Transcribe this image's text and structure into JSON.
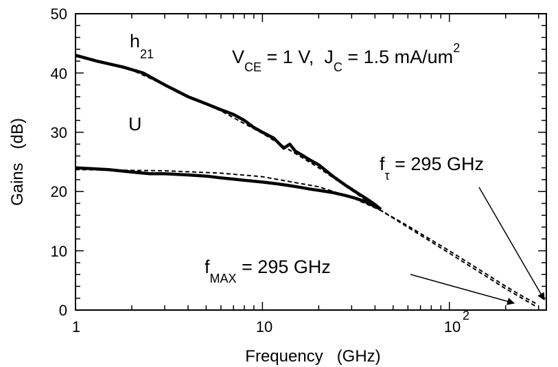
{
  "chart_data": {
    "type": "line",
    "xscale": "log",
    "xlim": [
      1,
      330
    ],
    "ylim": [
      0,
      50
    ],
    "xlabel": "Frequency   (GHz)",
    "ylabel": "Gains   (dB)",
    "x_tick_labels": [
      "1",
      "10",
      "10",
      "2"
    ],
    "y_ticks": [
      0,
      10,
      20,
      30,
      40,
      50
    ],
    "series": [
      {
        "name": "h21",
        "style": "solid",
        "points": [
          [
            1.0,
            43.0
          ],
          [
            1.3,
            42.0
          ],
          [
            1.8,
            41.0
          ],
          [
            2.3,
            40.0
          ],
          [
            3.0,
            38.0
          ],
          [
            4.0,
            36.0
          ],
          [
            5.0,
            34.8
          ],
          [
            6.0,
            33.8
          ],
          [
            7.0,
            33.0
          ],
          [
            8.0,
            32.0
          ],
          [
            9.0,
            30.8
          ],
          [
            10.0,
            30.0
          ],
          [
            11.5,
            29.0
          ],
          [
            13.0,
            27.3
          ],
          [
            14.0,
            28.0
          ],
          [
            15.0,
            26.8
          ],
          [
            16.0,
            26.3
          ],
          [
            18.0,
            25.3
          ],
          [
            20.0,
            24.5
          ],
          [
            24.0,
            22.5
          ],
          [
            28.0,
            21.0
          ],
          [
            32.0,
            19.8
          ],
          [
            36.0,
            18.8
          ],
          [
            40.0,
            17.8
          ],
          [
            43.0,
            17.0
          ]
        ]
      },
      {
        "name": "U",
        "style": "solid",
        "points": [
          [
            1.0,
            24.0
          ],
          [
            1.5,
            23.7
          ],
          [
            2.0,
            23.3
          ],
          [
            2.5,
            23.0
          ],
          [
            3.0,
            23.0
          ],
          [
            4.0,
            22.8
          ],
          [
            5.0,
            22.6
          ],
          [
            6.0,
            22.3
          ],
          [
            7.0,
            22.1
          ],
          [
            8.0,
            21.9
          ],
          [
            10.0,
            21.6
          ],
          [
            12.0,
            21.3
          ],
          [
            14.0,
            21.0
          ],
          [
            16.0,
            20.7
          ],
          [
            18.0,
            20.4
          ],
          [
            20.0,
            20.2
          ],
          [
            24.0,
            19.8
          ],
          [
            28.0,
            19.3
          ],
          [
            32.0,
            18.8
          ],
          [
            36.0,
            18.2
          ],
          [
            40.0,
            17.5
          ],
          [
            43.0,
            17.0
          ]
        ]
      },
      {
        "name": "h21 fit",
        "style": "dashed",
        "points": [
          [
            1.0,
            42.8
          ],
          [
            2.0,
            40.5
          ],
          [
            3.0,
            38.0
          ],
          [
            4.0,
            36.0
          ],
          [
            6.0,
            33.6
          ],
          [
            10.0,
            29.8
          ],
          [
            20.0,
            24.0
          ],
          [
            43.0,
            16.8
          ],
          [
            100.0,
            9.6
          ],
          [
            200.0,
            3.6
          ],
          [
            295.0,
            0.5
          ]
        ]
      },
      {
        "name": "U fit",
        "style": "dashed",
        "points": [
          [
            1.0,
            23.7
          ],
          [
            3.0,
            23.5
          ],
          [
            6.0,
            23.1
          ],
          [
            10.0,
            22.5
          ],
          [
            20.0,
            20.8
          ],
          [
            30.0,
            19.0
          ],
          [
            43.0,
            16.8
          ],
          [
            60.0,
            14.2
          ],
          [
            100.0,
            10.0
          ],
          [
            150.0,
            6.5
          ],
          [
            200.0,
            4.0
          ],
          [
            250.0,
            2.2
          ],
          [
            295.0,
            1.0
          ]
        ]
      }
    ],
    "annotations": {
      "h21": {
        "main": "h",
        "sub": "21"
      },
      "u": "U",
      "conditions": {
        "p1": "V",
        "s1": "CE",
        "p2": " = 1 V,  J",
        "s2": "C",
        "p3": " = 1.5 mA/um",
        "sup": "2"
      },
      "ft": {
        "main": "f",
        "sub": "τ",
        "rest": " = 295 GHz"
      },
      "fmax": {
        "main": "f",
        "sub": "MAX",
        "rest": " = 295 GHz"
      }
    },
    "grid": false,
    "legend": "none"
  }
}
